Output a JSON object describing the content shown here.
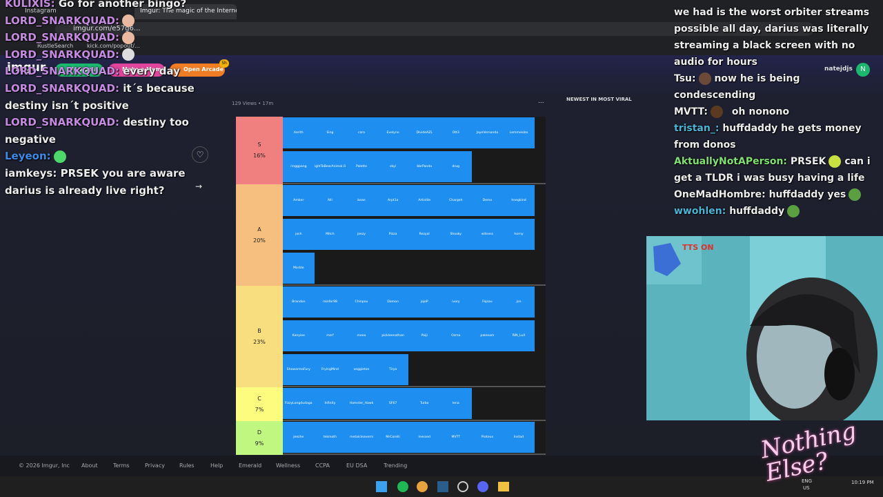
{
  "browser": {
    "tabs": [
      "Instagram",
      "Imgur: The magic of the Interne"
    ],
    "url": "imgur.com/e57g6...",
    "bookmarks": [
      "RustleSearch",
      "kick.com/popout/..."
    ]
  },
  "header": {
    "logo": "imgur",
    "buttons": [
      "New post",
      "Make a Meme",
      "Open Arcade"
    ],
    "badge": "5h",
    "username": "natejdjs",
    "avatar": "N"
  },
  "post": {
    "meta": "129 Views • 17m",
    "more": "...",
    "tiers": [
      {
        "name": "S",
        "percent": "16%",
        "color": "#f07f7f",
        "rows": [
          [
            "Aerith",
            "Sing",
            "cara",
            "Evelynn",
            "DivideAZL",
            "Ott3",
            "JayeVernanda",
            "Lemmeisba"
          ],
          [
            "ringgpang",
            "RightToBearAnimal.OL",
            "Palette",
            "skyi",
            "bbrPanda",
            "drug"
          ]
        ]
      },
      {
        "name": "A",
        "percent": "20%",
        "color": "#f6bf80",
        "rows": [
          [
            "Amber",
            "Alli",
            "bean",
            "Arpt1a",
            "Artistile",
            "Chargeh",
            "Demo",
            "hnegkind"
          ],
          [
            "josh",
            "Mitch",
            "jeezy",
            "Pizza",
            "Rezyal",
            "Shooky",
            "witness",
            "horny"
          ],
          [
            "Morble"
          ]
        ]
      },
      {
        "name": "B",
        "percent": "23%",
        "color": "#f8de7f",
        "rows": [
          [
            "Brandon",
            "rainfer98",
            "Chinpou",
            "Damon",
            "jojoP",
            "ivory",
            "Fajsau",
            "jon"
          ],
          [
            "Kanyiee",
            "mzrf",
            "meea",
            "pickleenathan",
            "Paiji",
            "Ozma",
            "paleeam",
            "RIN_LuX"
          ],
          [
            "ShawarmaFury",
            "FryingMind",
            "veggieton",
            "Tirya"
          ]
        ]
      },
      {
        "name": "C",
        "percent": "7%",
        "color": "#fdfc7f",
        "rows": [
          [
            "FizzyLongdudaga",
            "Infinity",
            "Hamster_Hawk",
            "SF67",
            "Turbo",
            "lena"
          ]
        ]
      },
      {
        "name": "D",
        "percent": "9%",
        "color": "#c0f780",
        "rows": [
          [
            "jeezhe",
            "tekmoth",
            "metalcleavemi",
            "MrCorelli",
            "inessed",
            "MVTT",
            "Proteus",
            "Instad"
          ]
        ]
      }
    ]
  },
  "sidebar": {
    "heading": "NEWEST IN MOST VIRAL"
  },
  "chat_left": [
    {
      "user": "KULIXIS:",
      "text": "Go for another bingo?"
    },
    {
      "user": "LORD_SNARKQUAD:"
    },
    {
      "user": "LORD_SNARKQUAD:"
    },
    {
      "user": "LORD_SNARKQUAD:"
    },
    {
      "user": "LORD_SNARKQUAD:",
      "text": "every day"
    },
    {
      "user": "LORD_SNARKQUAD:",
      "text": "it´s because destiny isn´t positive"
    },
    {
      "user": "LORD_SNARKQUAD:",
      "text": "destiny too negative"
    },
    {
      "user": "Leyeon:"
    },
    {
      "user": "iamkeys:",
      "text": "PRSEK you are aware darius is already live right?"
    }
  ],
  "chat_right": [
    {
      "text": "we had is the worst orbiter streams possible all day, darius was literally streaming a black screen with no audio for hours"
    },
    {
      "user": "Tsu:",
      "text": "now he is being condescending"
    },
    {
      "user": "MVTT:",
      "text": "oh nonono"
    },
    {
      "user": "tristan_:",
      "text": "huffdaddy he gets money from donos"
    },
    {
      "user": "AktuallyNotAPerson:",
      "text": "PRSEK",
      "text2": "can i get a TLDR i was busy having a life"
    },
    {
      "user": "OneMadHombre:",
      "text": "huffdaddy yes"
    },
    {
      "user": "wwohlen:",
      "text": "huffdaddy"
    }
  ],
  "overlay": {
    "tts": "TTS ON",
    "logo": "Nothing Else?"
  },
  "footer": {
    "copyright": "© 2026 Imgur, Inc",
    "links": [
      "About",
      "Terms",
      "Privacy",
      "Rules",
      "Help",
      "Emerald",
      "Wellness",
      "CCPA",
      "EU DSA",
      "Trending"
    ]
  },
  "taskbar": {
    "language": "ENG",
    "region": "US",
    "time": "10:19 PM"
  }
}
